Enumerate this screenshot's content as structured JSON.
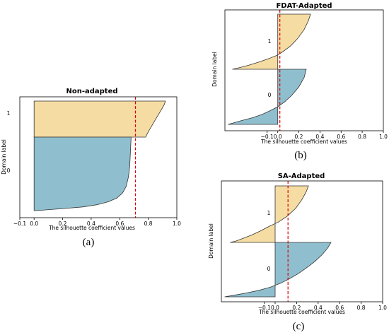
{
  "figure": {
    "colors": {
      "domain_1": "#f5dca2",
      "domain_0": "#8fbfce",
      "threshold": "#e00000",
      "outline": "#333333"
    }
  },
  "chart_data": [
    {
      "type": "area",
      "id": "a",
      "title": "Non-adapted",
      "xlabel": "The silhouette coefficient values",
      "ylabel": "Domain label",
      "caption": "(a)",
      "xlim": [
        -0.1,
        1.0
      ],
      "xticks": [
        -0.1,
        0.0,
        0.2,
        0.4,
        0.6,
        0.8,
        1.0
      ],
      "xtick_labels": [
        "−0.1",
        "0.0",
        "0.2",
        "0.4",
        "0.6",
        "0.8",
        "1.0"
      ],
      "threshold_x": 0.71,
      "series": [
        {
          "name": "1",
          "label": "1",
          "x": [
            0.92,
            0.912,
            0.89,
            0.86,
            0.83,
            0.805,
            0.79,
            0.782
          ],
          "y": [
            0.0,
            0.1,
            0.25,
            0.45,
            0.65,
            0.82,
            0.93,
            1.0
          ]
        },
        {
          "name": "0",
          "label": "0",
          "x": [
            0.68,
            0.675,
            0.67,
            0.66,
            0.645,
            0.62,
            0.58,
            0.52,
            0.44,
            0.34,
            0.22,
            0.12,
            0.05,
            0.01
          ],
          "y": [
            0.0,
            0.2,
            0.4,
            0.55,
            0.67,
            0.76,
            0.83,
            0.88,
            0.92,
            0.95,
            0.97,
            0.985,
            0.995,
            1.0
          ]
        }
      ]
    },
    {
      "type": "area",
      "id": "b",
      "title": "FDAT-Adapted",
      "xlabel": "The silhouette coefficient values",
      "ylabel": "Domain label",
      "caption": "(b)",
      "xlim": [
        -0.5,
        1.0
      ],
      "xticks": [
        -0.1,
        0.0,
        0.2,
        0.4,
        0.6,
        0.8,
        1.0
      ],
      "xtick_labels": [
        "−0.1",
        "0.0",
        "0.2",
        "0.4",
        "0.6",
        "0.8",
        "1.0"
      ],
      "threshold_x": 0.02,
      "series": [
        {
          "name": "1",
          "label": "1",
          "x": [
            0.31,
            0.29,
            0.25,
            0.19,
            0.12,
            0.05,
            -0.01,
            -0.09,
            -0.18,
            -0.28,
            -0.38,
            -0.43
          ],
          "y": [
            0.0,
            0.12,
            0.28,
            0.44,
            0.58,
            0.68,
            0.75,
            0.81,
            0.87,
            0.93,
            0.98,
            1.0
          ]
        },
        {
          "name": "0",
          "label": "0",
          "x": [
            0.27,
            0.25,
            0.2,
            0.13,
            0.06,
            0.0,
            -0.07,
            -0.15,
            -0.24,
            -0.34,
            -0.43,
            -0.47
          ],
          "y": [
            0.0,
            0.15,
            0.32,
            0.48,
            0.6,
            0.68,
            0.75,
            0.82,
            0.88,
            0.93,
            0.98,
            1.0
          ]
        }
      ]
    },
    {
      "type": "area",
      "id": "c",
      "title": "SA-Adapted",
      "xlabel": "The silhouette coefficient values",
      "ylabel": "Domain label",
      "caption": "(c)",
      "xlim": [
        -0.5,
        1.0
      ],
      "xticks": [
        -0.1,
        0.0,
        0.2,
        0.4,
        0.6,
        0.8,
        1.0
      ],
      "xtick_labels": [
        "−0.1",
        "0.0",
        "0.2",
        "0.4",
        "0.6",
        "0.8",
        "1.0"
      ],
      "threshold_x": 0.12,
      "series": [
        {
          "name": "1",
          "label": "1",
          "x": [
            0.31,
            0.29,
            0.25,
            0.19,
            0.11,
            0.03,
            -0.06,
            -0.14,
            -0.22,
            -0.3,
            -0.37,
            -0.42
          ],
          "y": [
            0.0,
            0.1,
            0.24,
            0.4,
            0.54,
            0.64,
            0.72,
            0.8,
            0.87,
            0.93,
            0.98,
            1.0
          ]
        },
        {
          "name": "0",
          "label": "0",
          "x": [
            0.52,
            0.49,
            0.44,
            0.37,
            0.29,
            0.21,
            0.13,
            0.05,
            -0.04,
            -0.15,
            -0.27,
            -0.38,
            -0.47
          ],
          "y": [
            0.0,
            0.1,
            0.22,
            0.35,
            0.47,
            0.58,
            0.67,
            0.75,
            0.82,
            0.88,
            0.93,
            0.97,
            1.0
          ]
        }
      ]
    }
  ]
}
